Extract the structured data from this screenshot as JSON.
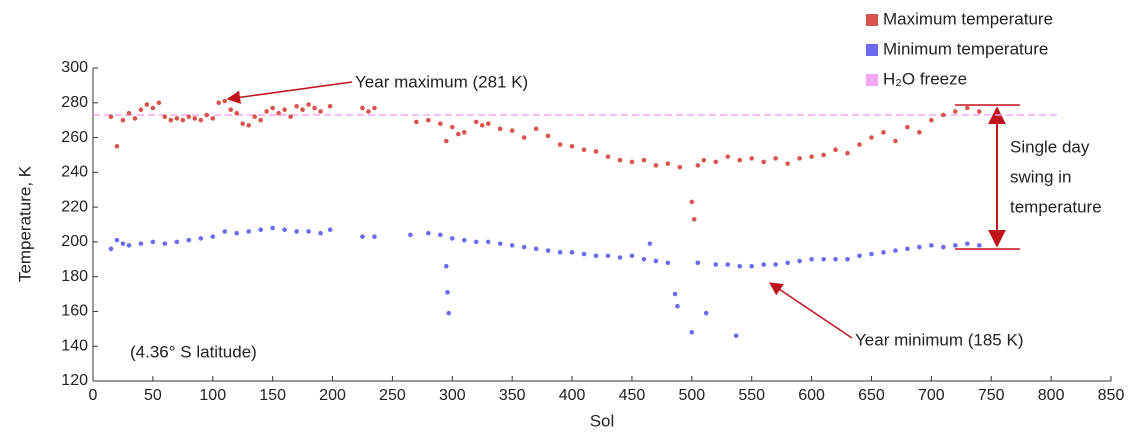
{
  "chart_data": {
    "type": "scatter",
    "x_label": "Sol",
    "y_label": "Temperature, K",
    "xlim": [
      0,
      850
    ],
    "xticks": [
      0,
      50,
      100,
      150,
      200,
      250,
      300,
      350,
      400,
      450,
      500,
      550,
      600,
      650,
      700,
      750,
      800,
      850
    ],
    "ylim": [
      120,
      300
    ],
    "yticks": [
      120,
      140,
      160,
      180,
      200,
      220,
      240,
      260,
      280,
      300
    ],
    "series": [
      {
        "name": "Maximum temperature",
        "color": "#d9534f",
        "x": [
          15,
          20,
          25,
          30,
          35,
          40,
          45,
          50,
          55,
          60,
          65,
          70,
          75,
          80,
          85,
          90,
          95,
          100,
          105,
          110,
          115,
          120,
          125,
          130,
          135,
          140,
          145,
          150,
          155,
          160,
          165,
          170,
          175,
          180,
          185,
          190,
          198,
          225,
          230,
          235,
          270,
          280,
          290,
          295,
          300,
          305,
          310,
          320,
          325,
          330,
          340,
          350,
          360,
          370,
          380,
          390,
          400,
          410,
          420,
          430,
          440,
          450,
          460,
          470,
          480,
          490,
          500,
          502,
          505,
          510,
          520,
          530,
          540,
          550,
          560,
          570,
          580,
          590,
          600,
          610,
          620,
          630,
          640,
          650,
          660,
          670,
          680,
          690,
          700,
          710,
          720,
          730,
          740
        ],
        "values": [
          272,
          255,
          270,
          274,
          271,
          276,
          279,
          277,
          280,
          272,
          270,
          271,
          270,
          272,
          271,
          270,
          273,
          271,
          280,
          281,
          276,
          274,
          268,
          267,
          272,
          270,
          275,
          277,
          274,
          276,
          272,
          278,
          276,
          279,
          277,
          275,
          278,
          277,
          275,
          277,
          269,
          270,
          268,
          258,
          266,
          262,
          263,
          269,
          267,
          268,
          265,
          264,
          260,
          265,
          261,
          256,
          255,
          253,
          252,
          249,
          247,
          246,
          247,
          244,
          245,
          243,
          223,
          213,
          244,
          247,
          246,
          249,
          247,
          248,
          246,
          248,
          245,
          248,
          249,
          250,
          253,
          251,
          256,
          260,
          263,
          258,
          266,
          263,
          270,
          273,
          275,
          277,
          275
        ]
      },
      {
        "name": "Minimum temperature",
        "color": "#6b6bf0",
        "x": [
          15,
          20,
          25,
          30,
          40,
          50,
          60,
          70,
          80,
          90,
          100,
          110,
          120,
          130,
          140,
          150,
          160,
          170,
          180,
          190,
          198,
          225,
          235,
          265,
          280,
          290,
          295,
          296,
          297,
          300,
          310,
          320,
          330,
          340,
          350,
          360,
          370,
          380,
          390,
          400,
          410,
          420,
          430,
          440,
          450,
          460,
          465,
          470,
          480,
          486,
          488,
          500,
          505,
          512,
          520,
          530,
          537,
          540,
          550,
          560,
          570,
          580,
          590,
          600,
          610,
          620,
          630,
          640,
          650,
          660,
          670,
          680,
          690,
          700,
          710,
          720,
          730,
          740
        ],
        "values": [
          196,
          201,
          199,
          198,
          199,
          200,
          199,
          200,
          201,
          202,
          203,
          206,
          205,
          206,
          207,
          208,
          207,
          206,
          206,
          205,
          207,
          203,
          203,
          204,
          205,
          204,
          186,
          171,
          159,
          202,
          201,
          200,
          200,
          199,
          198,
          197,
          196,
          195,
          194,
          194,
          193,
          192,
          192,
          191,
          192,
          190,
          199,
          189,
          188,
          170,
          163,
          148,
          188,
          159,
          187,
          187,
          146,
          186,
          186,
          187,
          187,
          188,
          189,
          190,
          190,
          190,
          190,
          192,
          193,
          194,
          195,
          196,
          197,
          198,
          197,
          198,
          199,
          198
        ]
      }
    ],
    "reference_lines": [
      {
        "name": "H₂O freeze",
        "value": 273,
        "color": "#f5a6f5"
      }
    ],
    "annotations": [
      "Year maximum (281 K)",
      "Year minimum (185 K)",
      "Single day",
      "swing in",
      "temperature",
      "(4.36° S latitude)"
    ]
  }
}
